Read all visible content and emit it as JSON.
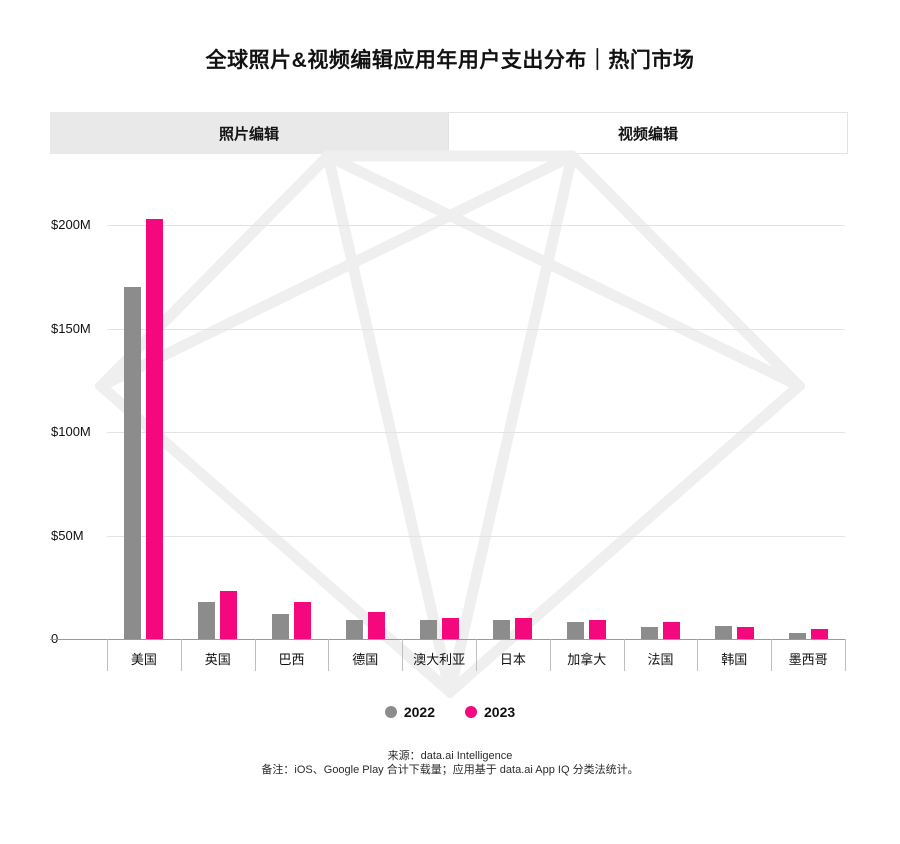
{
  "title": "全球照片&视频编辑应用年用户支出分布｜热门市场",
  "tabs": [
    {
      "label": "照片编辑",
      "active": false
    },
    {
      "label": "视频编辑",
      "active": true
    }
  ],
  "legend": [
    {
      "label": "2022",
      "color": "#8c8c8c"
    },
    {
      "label": "2023",
      "color": "#f5077e"
    }
  ],
  "footer": {
    "source": "来源：data.ai Intelligence",
    "note": "备注：iOS、Google Play 合计下载量；应用基于 data.ai App IQ 分类法统计。"
  },
  "colors": {
    "bar_2022": "#8c8c8c",
    "bar_2023": "#f5077e",
    "grid": "#e3e3e3",
    "axis": "#9b9b9b",
    "watermark": "#efefef",
    "tab_inactive_bg": "#e9e9e9"
  },
  "chart_data": {
    "type": "bar",
    "title": "全球照片&视频编辑应用年用户支出分布｜热门市场",
    "subtitle_tab": "视频编辑",
    "unit": "$M",
    "ylim": [
      0,
      200
    ],
    "grid": true,
    "legend_position": "bottom",
    "categories": [
      "美国",
      "英国",
      "巴西",
      "德国",
      "澳大利亚",
      "日本",
      "加拿大",
      "法国",
      "韩国",
      "墨西哥"
    ],
    "series": [
      {
        "name": "2022",
        "color": "#8c8c8c",
        "values": [
          170,
          18,
          12,
          9,
          9,
          9,
          8,
          6,
          6.5,
          3
        ]
      },
      {
        "name": "2023",
        "color": "#f5077e",
        "values": [
          203,
          23,
          18,
          13,
          10,
          10,
          9,
          8,
          6,
          5
        ]
      }
    ],
    "y_ticks": [
      {
        "label": "$200M",
        "value": 200
      },
      {
        "label": "$150M",
        "value": 150
      },
      {
        "label": "$100M",
        "value": 100
      },
      {
        "label": "$50M",
        "value": 50
      },
      {
        "label": "0",
        "value": 0
      }
    ]
  }
}
